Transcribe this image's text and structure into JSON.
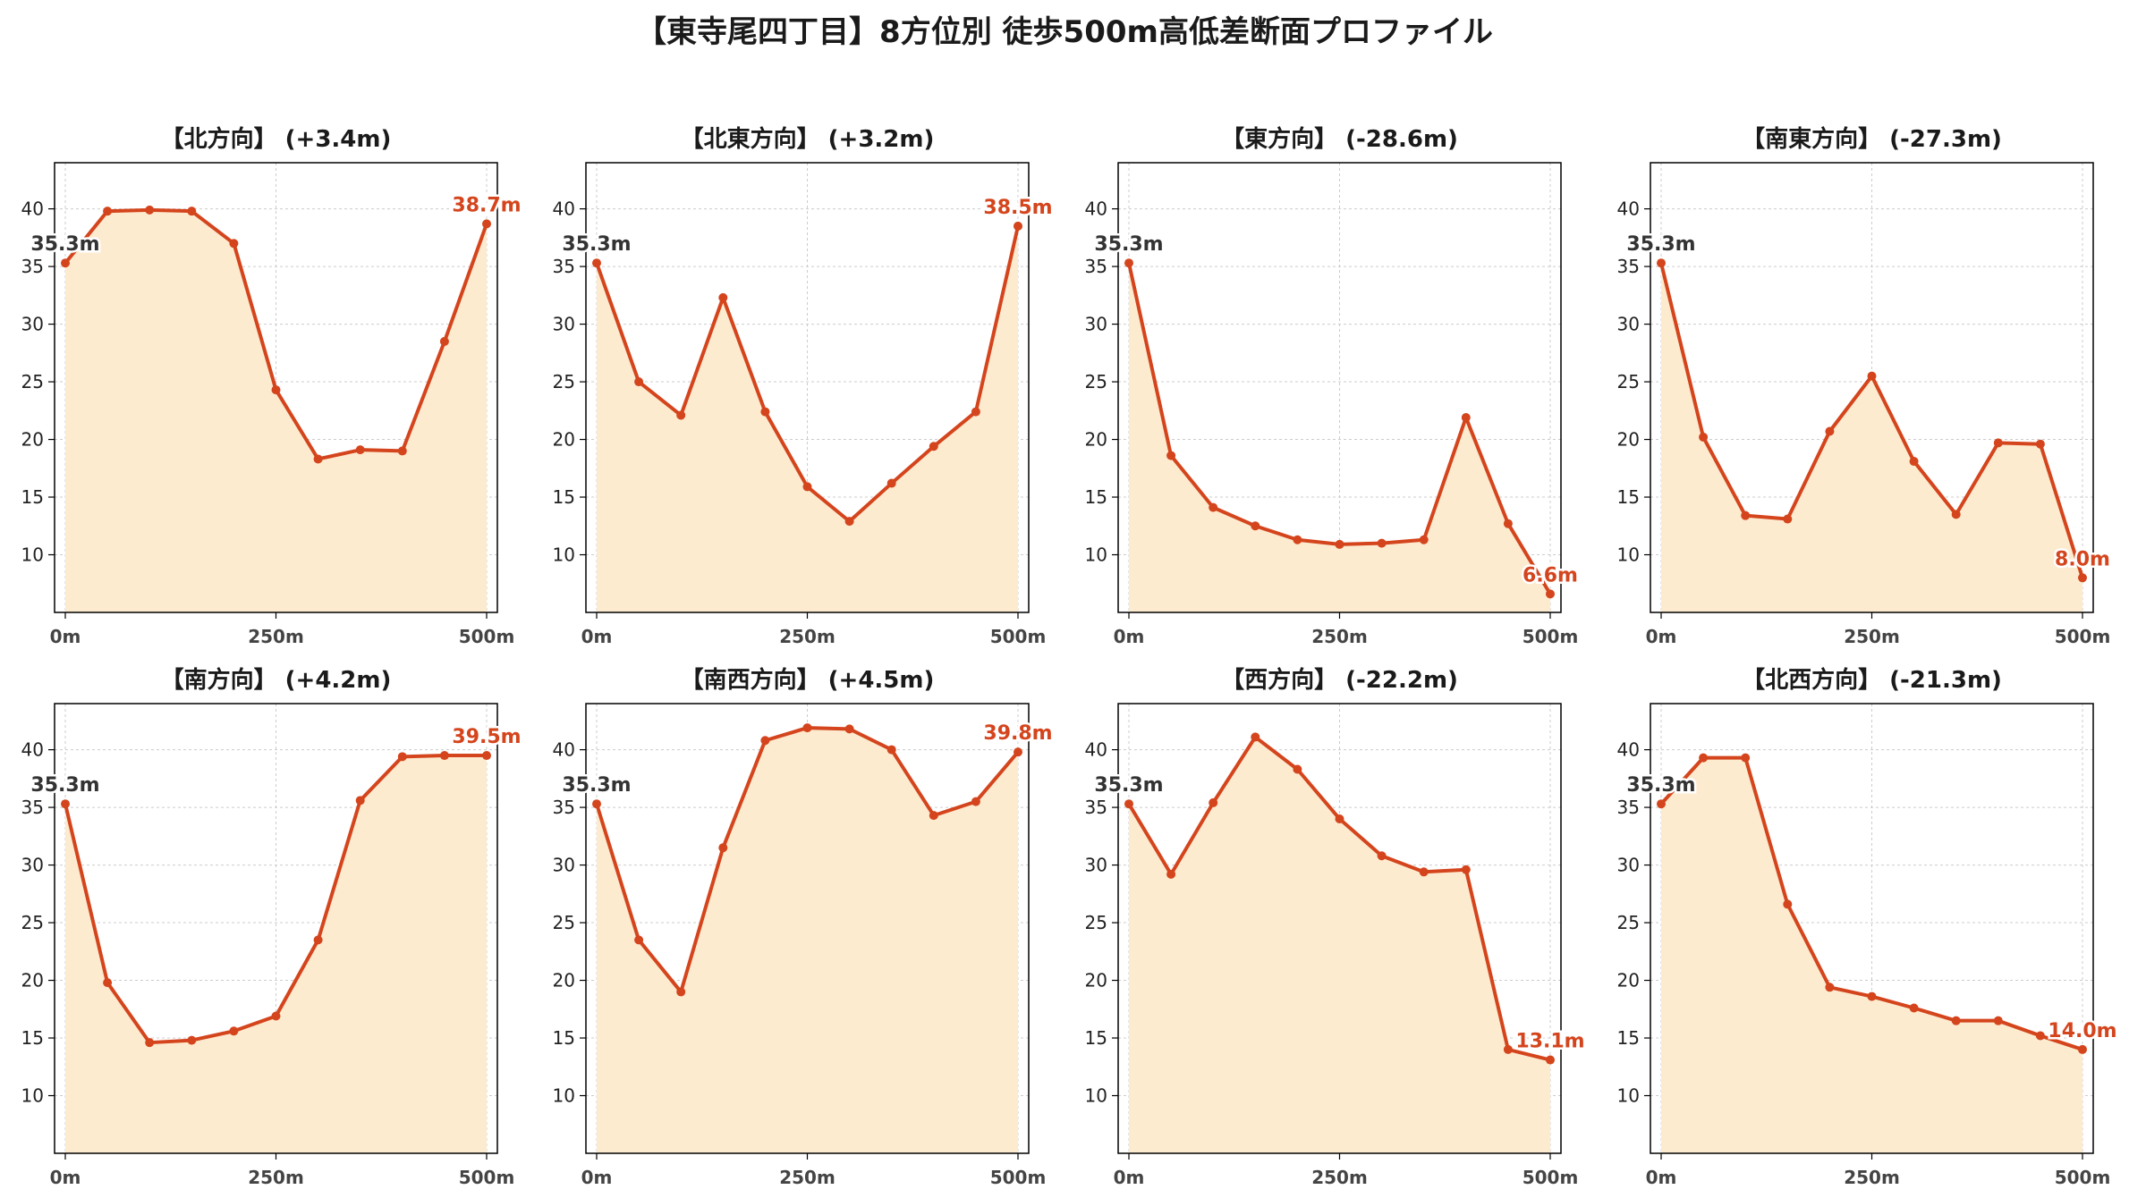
{
  "suptitle": "【東寺尾四丁目】8方位別 徒歩500m高低差断面プロファイル",
  "colors": {
    "line": "#d4451d",
    "fill": "#fdebd0",
    "start_label": "#333333",
    "end_label": "#d4451d",
    "grid": "#cccccc"
  },
  "chart_data": [
    {
      "type": "area",
      "title": "【北方向】 (+3.4m)",
      "x": [
        0,
        50,
        100,
        150,
        200,
        250,
        300,
        350,
        400,
        450,
        500
      ],
      "values": [
        35.3,
        39.8,
        39.9,
        39.8,
        37.0,
        24.3,
        18.3,
        19.1,
        19.0,
        28.5,
        38.7
      ],
      "start_label": "35.3m",
      "end_label": "38.7m",
      "xticks": [
        "0m",
        "250m",
        "500m"
      ],
      "yticks": [
        10,
        15,
        20,
        25,
        30,
        35,
        40
      ],
      "xlim": [
        0,
        500
      ],
      "ylim": [
        5,
        44
      ],
      "grid": true
    },
    {
      "type": "area",
      "title": "【北東方向】 (+3.2m)",
      "x": [
        0,
        50,
        100,
        150,
        200,
        250,
        300,
        350,
        400,
        450,
        500
      ],
      "values": [
        35.3,
        25.0,
        22.1,
        32.3,
        22.4,
        15.9,
        12.9,
        16.2,
        19.4,
        22.4,
        38.5
      ],
      "start_label": "35.3m",
      "end_label": "38.5m",
      "xticks": [
        "0m",
        "250m",
        "500m"
      ],
      "yticks": [
        10,
        15,
        20,
        25,
        30,
        35,
        40
      ],
      "xlim": [
        0,
        500
      ],
      "ylim": [
        5,
        44
      ],
      "grid": true
    },
    {
      "type": "area",
      "title": "【東方向】 (-28.6m)",
      "x": [
        0,
        50,
        100,
        150,
        200,
        250,
        300,
        350,
        400,
        450,
        500
      ],
      "values": [
        35.3,
        18.6,
        14.1,
        12.5,
        11.3,
        10.9,
        11.0,
        11.3,
        21.9,
        12.7,
        6.6
      ],
      "start_label": "35.3m",
      "end_label": "6.6m",
      "xticks": [
        "0m",
        "250m",
        "500m"
      ],
      "yticks": [
        10,
        15,
        20,
        25,
        30,
        35,
        40
      ],
      "xlim": [
        0,
        500
      ],
      "ylim": [
        5,
        44
      ],
      "grid": true
    },
    {
      "type": "area",
      "title": "【南東方向】 (-27.3m)",
      "x": [
        0,
        50,
        100,
        150,
        200,
        250,
        300,
        350,
        400,
        450,
        500
      ],
      "values": [
        35.3,
        20.2,
        13.4,
        13.1,
        20.7,
        25.5,
        18.1,
        13.5,
        19.7,
        19.6,
        8.0
      ],
      "start_label": "35.3m",
      "end_label": "8.0m",
      "xticks": [
        "0m",
        "250m",
        "500m"
      ],
      "yticks": [
        10,
        15,
        20,
        25,
        30,
        35,
        40
      ],
      "xlim": [
        0,
        500
      ],
      "ylim": [
        5,
        44
      ],
      "grid": true
    },
    {
      "type": "area",
      "title": "【南方向】 (+4.2m)",
      "x": [
        0,
        50,
        100,
        150,
        200,
        250,
        300,
        350,
        400,
        450,
        500
      ],
      "values": [
        35.3,
        19.8,
        14.6,
        14.8,
        15.6,
        16.9,
        23.5,
        35.6,
        39.4,
        39.5,
        39.5
      ],
      "start_label": "35.3m",
      "end_label": "39.5m",
      "xticks": [
        "0m",
        "250m",
        "500m"
      ],
      "yticks": [
        10,
        15,
        20,
        25,
        30,
        35,
        40
      ],
      "xlim": [
        0,
        500
      ],
      "ylim": [
        5,
        44
      ],
      "grid": true
    },
    {
      "type": "area",
      "title": "【南西方向】 (+4.5m)",
      "x": [
        0,
        50,
        100,
        150,
        200,
        250,
        300,
        350,
        400,
        450,
        500
      ],
      "values": [
        35.3,
        23.5,
        19.0,
        31.5,
        40.8,
        41.9,
        41.8,
        40.0,
        34.3,
        35.5,
        39.8
      ],
      "start_label": "35.3m",
      "end_label": "39.8m",
      "xticks": [
        "0m",
        "250m",
        "500m"
      ],
      "yticks": [
        10,
        15,
        20,
        25,
        30,
        35,
        40
      ],
      "xlim": [
        0,
        500
      ],
      "ylim": [
        5,
        44
      ],
      "grid": true
    },
    {
      "type": "area",
      "title": "【西方向】 (-22.2m)",
      "x": [
        0,
        50,
        100,
        150,
        200,
        250,
        300,
        350,
        400,
        450,
        500
      ],
      "values": [
        35.3,
        29.2,
        35.4,
        41.1,
        38.3,
        34.0,
        30.8,
        29.4,
        29.6,
        14.0,
        13.1
      ],
      "start_label": "35.3m",
      "end_label": "13.1m",
      "xticks": [
        "0m",
        "250m",
        "500m"
      ],
      "yticks": [
        10,
        15,
        20,
        25,
        30,
        35,
        40
      ],
      "xlim": [
        0,
        500
      ],
      "ylim": [
        5,
        44
      ],
      "grid": true
    },
    {
      "type": "area",
      "title": "【北西方向】 (-21.3m)",
      "x": [
        0,
        50,
        100,
        150,
        200,
        250,
        300,
        350,
        400,
        450,
        500
      ],
      "values": [
        35.3,
        39.3,
        39.3,
        26.6,
        19.4,
        18.6,
        17.6,
        16.5,
        16.5,
        15.2,
        14.0
      ],
      "start_label": "35.3m",
      "end_label": "14.0m",
      "xticks": [
        "0m",
        "250m",
        "500m"
      ],
      "yticks": [
        10,
        15,
        20,
        25,
        30,
        35,
        40
      ],
      "xlim": [
        0,
        500
      ],
      "ylim": [
        5,
        44
      ],
      "grid": true
    }
  ]
}
